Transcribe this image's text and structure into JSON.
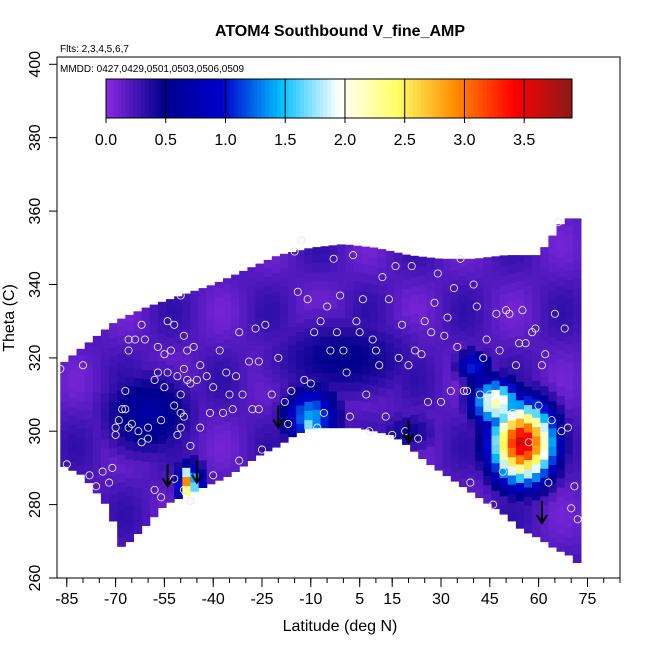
{
  "chart_data": {
    "type": "heatmap",
    "title": "ATOM4 Southbound V_fine_AMP",
    "annotations": {
      "flights": "Flts: 2,3,4,5,6,7",
      "dates": "MMDD: 0427,0429,0501,0503,0506,0509"
    },
    "xlabel": "Latitude (deg N)",
    "ylabel": "Theta (C)",
    "xlim": [
      -88,
      85
    ],
    "ylim": [
      260,
      402
    ],
    "xticks": [
      -85,
      -70,
      -55,
      -40,
      -25,
      -10,
      5,
      15,
      30,
      45,
      60,
      75
    ],
    "xtick_labels": [
      "-85",
      "-70",
      "-55",
      "-40",
      "-25",
      "-10",
      "5",
      "15",
      "30",
      "45",
      "60",
      "75"
    ],
    "yticks": [
      260,
      280,
      300,
      320,
      340,
      360,
      380,
      400
    ],
    "ytick_labels": [
      "260",
      "280",
      "300",
      "320",
      "340",
      "360",
      "380",
      "400"
    ],
    "colorbar": {
      "range": [
        0,
        3.9
      ],
      "ticks": [
        0,
        0.5,
        1,
        1.5,
        2,
        2.5,
        3,
        3.5
      ],
      "tick_labels": [
        "0.0",
        "0.5",
        "1.0",
        "1.5",
        "2.0",
        "2.5",
        "3.0",
        "3.5"
      ],
      "colors": [
        "#8a2be2",
        "#00008b",
        "#0000cd",
        "#00bfff",
        "#ffffff",
        "#ffff66",
        "#ff8c00",
        "#ff0000",
        "#8b1a1a"
      ]
    },
    "upper_boundary": [
      [
        -87,
        318
      ],
      [
        -80,
        323
      ],
      [
        -70,
        330
      ],
      [
        -60,
        334
      ],
      [
        -50,
        337
      ],
      [
        -40,
        340
      ],
      [
        -30,
        344
      ],
      [
        -20,
        348
      ],
      [
        -10,
        350
      ],
      [
        0,
        351
      ],
      [
        10,
        350
      ],
      [
        20,
        348
      ],
      [
        30,
        347
      ],
      [
        40,
        347
      ],
      [
        50,
        348
      ],
      [
        60,
        348
      ],
      [
        68,
        358
      ],
      [
        72,
        358
      ]
    ],
    "lower_boundary": [
      [
        -87,
        291
      ],
      [
        -80,
        288
      ],
      [
        -72,
        279
      ],
      [
        -68,
        268
      ],
      [
        -60,
        275
      ],
      [
        -55,
        280
      ],
      [
        -50,
        282
      ],
      [
        -45,
        284
      ],
      [
        -40,
        286
      ],
      [
        -35,
        288
      ],
      [
        -30,
        291
      ],
      [
        -25,
        294
      ],
      [
        -20,
        296
      ],
      [
        -15,
        299
      ],
      [
        -10,
        301
      ],
      [
        -5,
        301
      ],
      [
        0,
        301
      ],
      [
        5,
        301
      ],
      [
        10,
        300
      ],
      [
        15,
        299
      ],
      [
        20,
        296
      ],
      [
        25,
        292
      ],
      [
        30,
        289
      ],
      [
        35,
        286
      ],
      [
        40,
        283
      ],
      [
        45,
        280
      ],
      [
        50,
        277
      ],
      [
        55,
        273
      ],
      [
        60,
        271
      ],
      [
        65,
        268
      ],
      [
        70,
        266
      ],
      [
        72,
        264
      ]
    ],
    "hotspots": [
      {
        "lat": 55,
        "theta": 297,
        "value": 3.6,
        "lat_radius": 9,
        "theta_radius": 10
      },
      {
        "lat": 47,
        "theta": 308,
        "value": 2.2,
        "lat_radius": 7,
        "theta_radius": 6
      },
      {
        "lat": 40,
        "theta": 318,
        "value": 1.1,
        "lat_radius": 5,
        "theta_radius": 4
      },
      {
        "lat": -48,
        "theta": 286,
        "value": 3.0,
        "lat_radius": 2.5,
        "theta_radius": 4
      },
      {
        "lat": -47,
        "theta": 285,
        "value": 1.8,
        "lat_radius": 4,
        "theta_radius": 6
      },
      {
        "lat": -10,
        "theta": 304,
        "value": 1.4,
        "lat_radius": 8,
        "theta_radius": 8
      },
      {
        "lat": -10,
        "theta": 302,
        "value": 1.8,
        "lat_radius": 3,
        "theta_radius": 3
      },
      {
        "lat": -60,
        "theta": 305,
        "value": 0.65,
        "lat_radius": 15,
        "theta_radius": 12
      },
      {
        "lat": 0,
        "theta": 320,
        "value": 0.5,
        "lat_radius": 25,
        "theta_radius": 12
      },
      {
        "lat": 20,
        "theta": 300,
        "value": 0.45,
        "lat_radius": 10,
        "theta_radius": 6
      }
    ],
    "arrows": [
      {
        "lat": -54,
        "theta": 285
      },
      {
        "lat": -45,
        "theta": 286
      },
      {
        "lat": -20,
        "theta": 301
      },
      {
        "lat": 20,
        "theta": 297
      },
      {
        "lat": 61,
        "theta": 275
      }
    ],
    "points": [
      [
        -87,
        317
      ],
      [
        -85,
        291
      ],
      [
        -80,
        318
      ],
      [
        -78,
        288
      ],
      [
        -76,
        285
      ],
      [
        -74,
        289
      ],
      [
        -72,
        286
      ],
      [
        -71,
        290
      ],
      [
        -70,
        301
      ],
      [
        -70,
        299
      ],
      [
        -69,
        303
      ],
      [
        -68,
        306
      ],
      [
        -67,
        306
      ],
      [
        -67,
        311
      ],
      [
        -66,
        325
      ],
      [
        -66,
        322
      ],
      [
        -66,
        301
      ],
      [
        -65,
        302
      ],
      [
        -64,
        325
      ],
      [
        -63,
        300
      ],
      [
        -62,
        329
      ],
      [
        -62,
        297
      ],
      [
        -61,
        325
      ],
      [
        -60,
        301
      ],
      [
        -60,
        298
      ],
      [
        -58,
        314
      ],
      [
        -58,
        284
      ],
      [
        -57,
        323
      ],
      [
        -57,
        316
      ],
      [
        -56,
        303
      ],
      [
        -56,
        282
      ],
      [
        -55,
        321
      ],
      [
        -55,
        312
      ],
      [
        -54,
        330
      ],
      [
        -54,
        316
      ],
      [
        -53,
        322
      ],
      [
        -52,
        329
      ],
      [
        -52,
        307
      ],
      [
        -52,
        287
      ],
      [
        -51,
        315
      ],
      [
        -51,
        299
      ],
      [
        -50,
        337
      ],
      [
        -50,
        310
      ],
      [
        -50,
        305
      ],
      [
        -50,
        301
      ],
      [
        -49,
        326
      ],
      [
        -49,
        317
      ],
      [
        -49,
        304
      ],
      [
        -49,
        284
      ],
      [
        -48,
        322
      ],
      [
        -48,
        314
      ],
      [
        -47,
        313
      ],
      [
        -47,
        296
      ],
      [
        -47,
        281
      ],
      [
        -46,
        323
      ],
      [
        -45,
        314
      ],
      [
        -44,
        318
      ],
      [
        -44,
        301
      ],
      [
        -42,
        315
      ],
      [
        -41,
        305
      ],
      [
        -40,
        288
      ],
      [
        -40,
        312
      ],
      [
        -38,
        322
      ],
      [
        -37,
        305
      ],
      [
        -36,
        316
      ],
      [
        -35,
        310
      ],
      [
        -34,
        306
      ],
      [
        -33,
        315
      ],
      [
        -32,
        327
      ],
      [
        -32,
        292
      ],
      [
        -31,
        310
      ],
      [
        -29,
        319
      ],
      [
        -28,
        306
      ],
      [
        -27,
        328
      ],
      [
        -26,
        319
      ],
      [
        -26,
        306
      ],
      [
        -25,
        295
      ],
      [
        -24,
        329
      ],
      [
        -22,
        310
      ],
      [
        -20,
        320
      ],
      [
        -18,
        308
      ],
      [
        -17,
        302
      ],
      [
        -16,
        311
      ],
      [
        -15,
        349
      ],
      [
        -14,
        338
      ],
      [
        -13,
        352
      ],
      [
        -12,
        314
      ],
      [
        -11,
        336
      ],
      [
        -10,
        313
      ],
      [
        -9,
        327
      ],
      [
        -8,
        301
      ],
      [
        -7,
        330
      ],
      [
        -6,
        305
      ],
      [
        -5,
        334
      ],
      [
        -4,
        322
      ],
      [
        -3,
        347
      ],
      [
        -2,
        327
      ],
      [
        -1,
        337
      ],
      [
        0,
        322
      ],
      [
        1,
        316
      ],
      [
        2,
        304
      ],
      [
        3,
        348
      ],
      [
        4,
        330
      ],
      [
        5,
        327
      ],
      [
        6,
        336
      ],
      [
        7,
        310
      ],
      [
        8,
        300
      ],
      [
        9,
        325
      ],
      [
        10,
        322
      ],
      [
        11,
        318
      ],
      [
        12,
        342
      ],
      [
        13,
        304
      ],
      [
        14,
        336
      ],
      [
        15,
        299
      ],
      [
        16,
        345
      ],
      [
        17,
        320
      ],
      [
        18,
        329
      ],
      [
        19,
        300
      ],
      [
        20,
        318
      ],
      [
        21,
        345
      ],
      [
        22,
        322
      ],
      [
        23,
        298
      ],
      [
        24,
        321
      ],
      [
        25,
        330
      ],
      [
        26,
        308
      ],
      [
        27,
        327
      ],
      [
        28,
        335
      ],
      [
        29,
        343
      ],
      [
        30,
        308
      ],
      [
        31,
        326
      ],
      [
        32,
        331
      ],
      [
        33,
        311
      ],
      [
        34,
        339
      ],
      [
        35,
        323
      ],
      [
        36,
        347
      ],
      [
        37,
        311
      ],
      [
        38,
        311
      ],
      [
        39,
        286
      ],
      [
        40,
        340
      ],
      [
        41,
        334
      ],
      [
        42,
        310
      ],
      [
        43,
        320
      ],
      [
        44,
        325
      ],
      [
        45,
        310
      ],
      [
        46,
        280
      ],
      [
        47,
        332
      ],
      [
        48,
        322
      ],
      [
        49,
        289
      ],
      [
        50,
        333
      ],
      [
        51,
        332
      ],
      [
        52,
        305
      ],
      [
        53,
        318
      ],
      [
        54,
        324
      ],
      [
        55,
        333
      ],
      [
        56,
        324
      ],
      [
        57,
        297
      ],
      [
        58,
        327
      ],
      [
        59,
        328
      ],
      [
        60,
        307
      ],
      [
        61,
        318
      ],
      [
        62,
        321
      ],
      [
        63,
        286
      ],
      [
        64,
        303
      ],
      [
        65,
        332
      ],
      [
        66,
        357
      ],
      [
        67,
        300
      ],
      [
        68,
        328
      ],
      [
        69,
        301
      ],
      [
        70,
        279
      ],
      [
        71,
        285
      ],
      [
        72,
        276
      ]
    ]
  }
}
